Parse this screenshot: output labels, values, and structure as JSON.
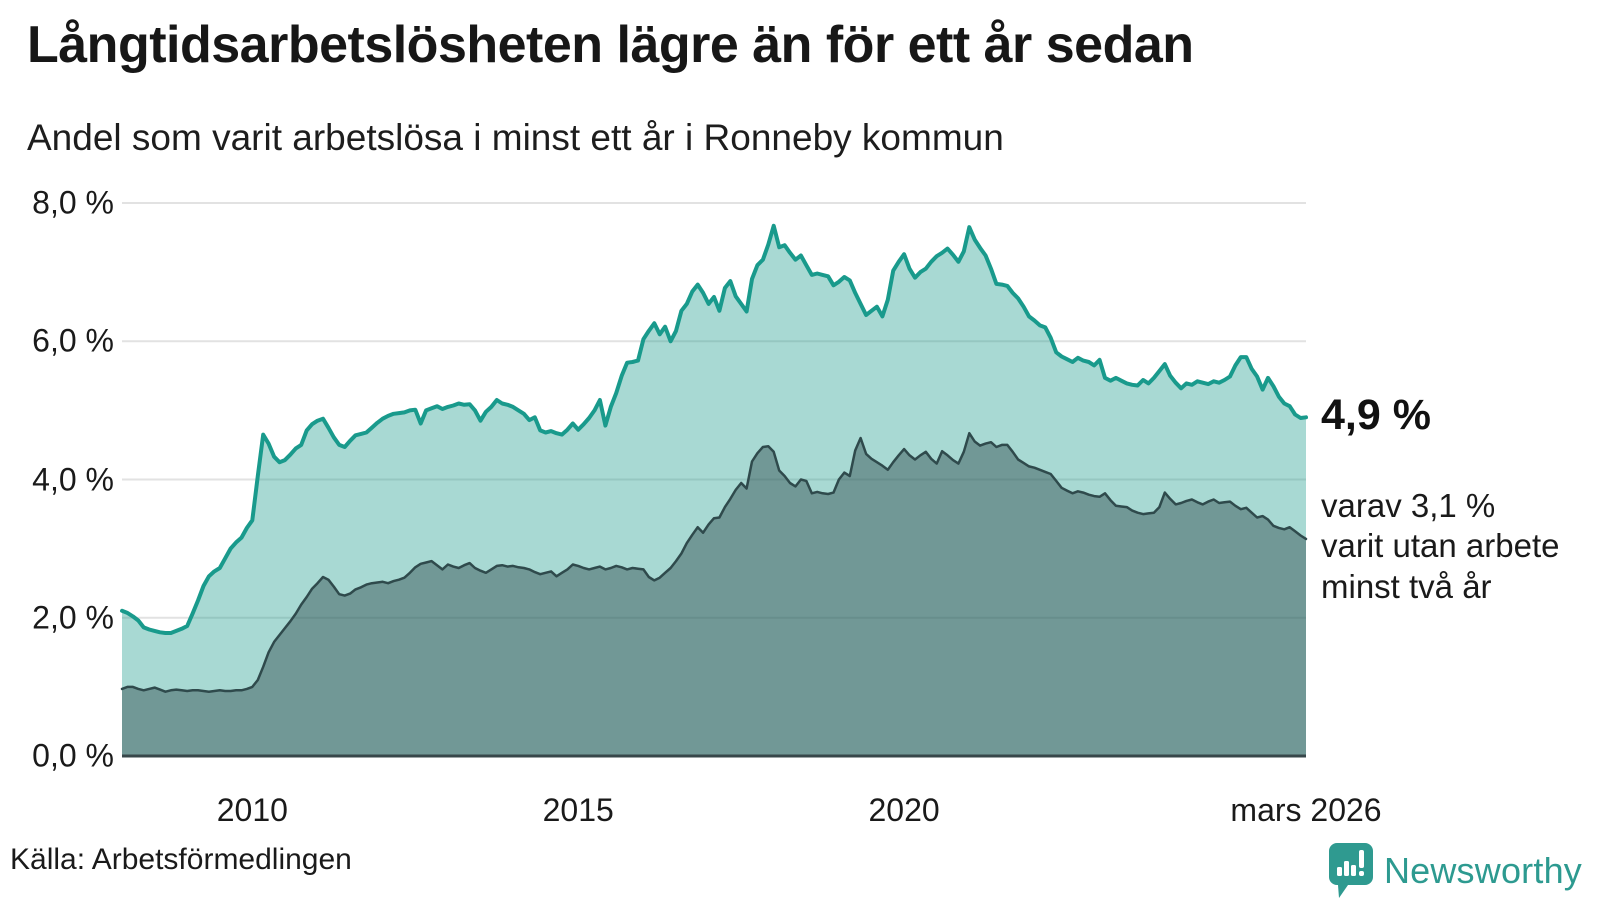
{
  "header": {
    "title": "Långtidsarbetslösheten lägre än för ett år sedan",
    "subtitle": "Andel som varit arbetslösa i minst ett år i Ronneby kommun"
  },
  "annotations": {
    "latest_total": "4,9 %",
    "latest_two_year_lines": [
      "varav 3,1 %",
      "varit utan arbete",
      "minst två år"
    ]
  },
  "footer": {
    "source": "Källa: Arbetsförmedlingen",
    "brand": "Newsworthy",
    "brand_color": "#2d9a90",
    "brand_logo_icon": "newsworthy-speech-bubble-bar-chart-icon"
  },
  "chart_data": {
    "type": "area",
    "title": "Långtidsarbetslösheten lägre än för ett år sedan",
    "subtitle": "Andel som varit arbetslösa i minst ett år i Ronneby kommun",
    "x_unit": "month",
    "x_start": "2008-01",
    "x_end": "2026-03",
    "ylim": [
      0,
      8
    ],
    "grid": true,
    "legend": "none",
    "y_ticks": [
      {
        "label": "0,0 %",
        "value": 0
      },
      {
        "label": "2,0 %",
        "value": 2
      },
      {
        "label": "4,0 %",
        "value": 4
      },
      {
        "label": "6,0 %",
        "value": 6
      },
      {
        "label": "8,0 %",
        "value": 8
      }
    ],
    "x_ticks": [
      {
        "label": "2010",
        "month_index": 24
      },
      {
        "label": "2015",
        "month_index": 84
      },
      {
        "label": "2020",
        "month_index": 144
      },
      {
        "label": "mars 2026",
        "month_index": 218
      }
    ],
    "series": [
      {
        "name": "Andel arbetslösa minst ett år",
        "line_color": "#199a8c",
        "fill_color": "rgba(25,154,140,0.38)",
        "line_width": 4,
        "end_value_label": "4,9 %",
        "values": [
          2.1,
          2.07,
          2.02,
          1.96,
          1.86,
          1.83,
          1.81,
          1.79,
          1.78,
          1.78,
          1.81,
          1.84,
          1.88,
          2.06,
          2.25,
          2.46,
          2.6,
          2.67,
          2.72,
          2.86,
          3.0,
          3.09,
          3.16,
          3.3,
          3.41,
          4.05,
          4.65,
          4.52,
          4.33,
          4.25,
          4.28,
          4.36,
          4.45,
          4.5,
          4.71,
          4.8,
          4.85,
          4.88,
          4.75,
          4.61,
          4.5,
          4.47,
          4.56,
          4.64,
          4.66,
          4.68,
          4.75,
          4.82,
          4.88,
          4.92,
          4.95,
          4.96,
          4.97,
          5.0,
          5.01,
          4.81,
          5.0,
          5.03,
          5.06,
          5.02,
          5.05,
          5.07,
          5.1,
          5.08,
          5.09,
          5.0,
          4.85,
          4.98,
          5.05,
          5.15,
          5.1,
          5.08,
          5.05,
          5.0,
          4.95,
          4.86,
          4.9,
          4.71,
          4.68,
          4.7,
          4.67,
          4.65,
          4.72,
          4.81,
          4.72,
          4.8,
          4.89,
          5.0,
          5.15,
          4.78,
          5.05,
          5.25,
          5.5,
          5.69,
          5.7,
          5.72,
          6.03,
          6.15,
          6.26,
          6.1,
          6.21,
          6.0,
          6.15,
          6.44,
          6.54,
          6.72,
          6.82,
          6.7,
          6.54,
          6.64,
          6.44,
          6.77,
          6.87,
          6.65,
          6.54,
          6.43,
          6.9,
          7.1,
          7.18,
          7.4,
          7.67,
          7.36,
          7.39,
          7.28,
          7.18,
          7.24,
          7.1,
          6.96,
          6.98,
          6.96,
          6.94,
          6.81,
          6.86,
          6.93,
          6.88,
          6.7,
          6.54,
          6.38,
          6.44,
          6.5,
          6.36,
          6.6,
          7.02,
          7.15,
          7.26,
          7.05,
          6.92,
          7.0,
          7.05,
          7.15,
          7.23,
          7.28,
          7.34,
          7.25,
          7.15,
          7.3,
          7.65,
          7.47,
          7.35,
          7.24,
          7.05,
          6.83,
          6.82,
          6.8,
          6.7,
          6.62,
          6.5,
          6.36,
          6.3,
          6.23,
          6.2,
          6.05,
          5.84,
          5.78,
          5.74,
          5.7,
          5.76,
          5.72,
          5.7,
          5.65,
          5.73,
          5.47,
          5.43,
          5.47,
          5.43,
          5.39,
          5.37,
          5.36,
          5.44,
          5.39,
          5.47,
          5.57,
          5.67,
          5.5,
          5.4,
          5.32,
          5.39,
          5.37,
          5.42,
          5.4,
          5.38,
          5.42,
          5.4,
          5.44,
          5.49,
          5.65,
          5.77,
          5.77,
          5.6,
          5.49,
          5.3,
          5.47,
          5.35,
          5.2,
          5.1,
          5.06,
          4.94,
          4.89,
          4.9
        ]
      },
      {
        "name": "Andel arbetslösa minst två år",
        "line_color": "#2f4a4c",
        "fill_color": "rgba(47,73,75,0.45)",
        "line_width": 2.5,
        "end_value_label": "3,1 %",
        "values": [
          0.97,
          1.0,
          1.0,
          0.97,
          0.95,
          0.97,
          0.99,
          0.96,
          0.93,
          0.95,
          0.96,
          0.95,
          0.94,
          0.95,
          0.95,
          0.94,
          0.93,
          0.94,
          0.95,
          0.94,
          0.94,
          0.95,
          0.95,
          0.97,
          1.0,
          1.1,
          1.29,
          1.5,
          1.65,
          1.75,
          1.85,
          1.95,
          2.06,
          2.19,
          2.3,
          2.42,
          2.5,
          2.59,
          2.55,
          2.45,
          2.34,
          2.32,
          2.35,
          2.41,
          2.44,
          2.48,
          2.5,
          2.51,
          2.52,
          2.5,
          2.53,
          2.55,
          2.58,
          2.65,
          2.73,
          2.78,
          2.8,
          2.82,
          2.76,
          2.7,
          2.77,
          2.74,
          2.72,
          2.76,
          2.79,
          2.72,
          2.68,
          2.65,
          2.7,
          2.75,
          2.76,
          2.74,
          2.75,
          2.73,
          2.72,
          2.7,
          2.66,
          2.63,
          2.65,
          2.67,
          2.6,
          2.65,
          2.7,
          2.77,
          2.75,
          2.72,
          2.7,
          2.72,
          2.74,
          2.7,
          2.72,
          2.75,
          2.73,
          2.7,
          2.72,
          2.71,
          2.7,
          2.59,
          2.54,
          2.58,
          2.65,
          2.72,
          2.82,
          2.93,
          3.08,
          3.2,
          3.31,
          3.23,
          3.35,
          3.44,
          3.45,
          3.6,
          3.72,
          3.85,
          3.95,
          3.87,
          4.26,
          4.38,
          4.47,
          4.48,
          4.4,
          4.13,
          4.05,
          3.95,
          3.9,
          4.0,
          3.98,
          3.8,
          3.82,
          3.8,
          3.79,
          3.81,
          4.0,
          4.1,
          4.05,
          4.42,
          4.6,
          4.37,
          4.3,
          4.25,
          4.2,
          4.14,
          4.25,
          4.35,
          4.44,
          4.35,
          4.29,
          4.35,
          4.4,
          4.3,
          4.23,
          4.41,
          4.35,
          4.28,
          4.23,
          4.4,
          4.67,
          4.55,
          4.49,
          4.52,
          4.54,
          4.47,
          4.5,
          4.5,
          4.4,
          4.29,
          4.24,
          4.19,
          4.17,
          4.14,
          4.11,
          4.08,
          3.98,
          3.88,
          3.84,
          3.8,
          3.83,
          3.81,
          3.78,
          3.76,
          3.75,
          3.8,
          3.7,
          3.62,
          3.61,
          3.6,
          3.55,
          3.52,
          3.5,
          3.51,
          3.52,
          3.6,
          3.81,
          3.72,
          3.64,
          3.66,
          3.69,
          3.71,
          3.67,
          3.64,
          3.68,
          3.71,
          3.66,
          3.67,
          3.68,
          3.62,
          3.57,
          3.59,
          3.52,
          3.45,
          3.47,
          3.42,
          3.33,
          3.3,
          3.28,
          3.31,
          3.25,
          3.19,
          3.14
        ]
      }
    ],
    "annotations": [
      {
        "text": "4,9 %",
        "attach": "end-of-total-series"
      },
      {
        "text": "varav 3,1 % varit utan arbete minst två år",
        "attach": "end-of-two-year-series"
      }
    ],
    "gridline_color": "#e2e2e2",
    "axis_color": "#37474a"
  }
}
